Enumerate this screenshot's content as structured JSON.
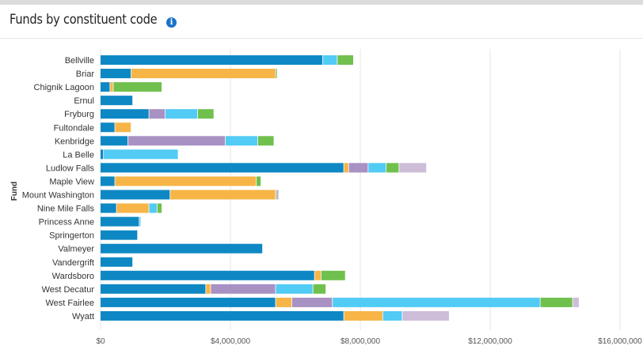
{
  "header": {
    "title": "Funds by constituent code",
    "info_icon": "info-icon"
  },
  "colors": {
    "series": [
      "#0e88c4",
      "#f7b547",
      "#a891c3",
      "#52cbf5",
      "#70c04d",
      "#cdbdd8",
      "#bdbdbd"
    ],
    "grid": "#e4e4e4"
  },
  "chart_data": {
    "type": "bar",
    "orientation": "horizontal",
    "stacked": true,
    "title": "Funds by constituent code",
    "ylabel": "Fund",
    "xlabel": "",
    "xlim": [
      0,
      16500000
    ],
    "x_ticks": [
      0,
      4000000,
      8000000,
      12000000,
      16000000
    ],
    "x_tick_labels": [
      "$0",
      "$4,000,000",
      "$8,000,000",
      "$12,000,000",
      "$16,000,000"
    ],
    "grid": true,
    "categories": [
      "Bellville",
      "Briar",
      "Chignik Lagoon",
      "Ernul",
      "Fryburg",
      "Fultondale",
      "Kenbridge",
      "La Belle",
      "Ludlow Falls",
      "Maple View",
      "Mount Washington",
      "Nine Mile Falls",
      "Princess Anne",
      "Springerton",
      "Valmeyer",
      "Vandergrift",
      "Wardsboro",
      "West Decatur",
      "West Fairlee",
      "Wyatt"
    ],
    "series": [
      {
        "values": [
          6850000,
          950000,
          300000,
          1000000,
          1500000,
          450000,
          850000,
          100000,
          7500000,
          450000,
          2150000,
          500000,
          1200000,
          1150000,
          5000000,
          1000000,
          6600000,
          3250000,
          5400000,
          7500000
        ]
      },
      {
        "values": [
          0,
          4450000,
          100000,
          0,
          0,
          500000,
          0,
          0,
          150000,
          4350000,
          3250000,
          1000000,
          0,
          0,
          0,
          0,
          200000,
          150000,
          500000,
          1200000
        ]
      },
      {
        "values": [
          0,
          0,
          0,
          0,
          500000,
          0,
          3000000,
          0,
          600000,
          0,
          0,
          0,
          0,
          0,
          0,
          0,
          0,
          2000000,
          1250000,
          0
        ]
      },
      {
        "values": [
          450000,
          0,
          0,
          0,
          1000000,
          0,
          1000000,
          2300000,
          550000,
          0,
          0,
          250000,
          50000,
          0,
          0,
          0,
          0,
          1150000,
          6400000,
          600000
        ]
      },
      {
        "values": [
          500000,
          50000,
          1500000,
          0,
          500000,
          0,
          500000,
          0,
          400000,
          150000,
          0,
          150000,
          0,
          0,
          0,
          0,
          750000,
          400000,
          1000000,
          0
        ]
      },
      {
        "values": [
          0,
          0,
          0,
          0,
          0,
          0,
          0,
          0,
          850000,
          0,
          0,
          0,
          0,
          0,
          0,
          0,
          0,
          0,
          200000,
          1450000
        ]
      },
      {
        "values": [
          0,
          0,
          0,
          0,
          0,
          0,
          0,
          0,
          0,
          0,
          100000,
          0,
          0,
          0,
          0,
          0,
          0,
          0,
          0,
          0
        ]
      }
    ]
  }
}
